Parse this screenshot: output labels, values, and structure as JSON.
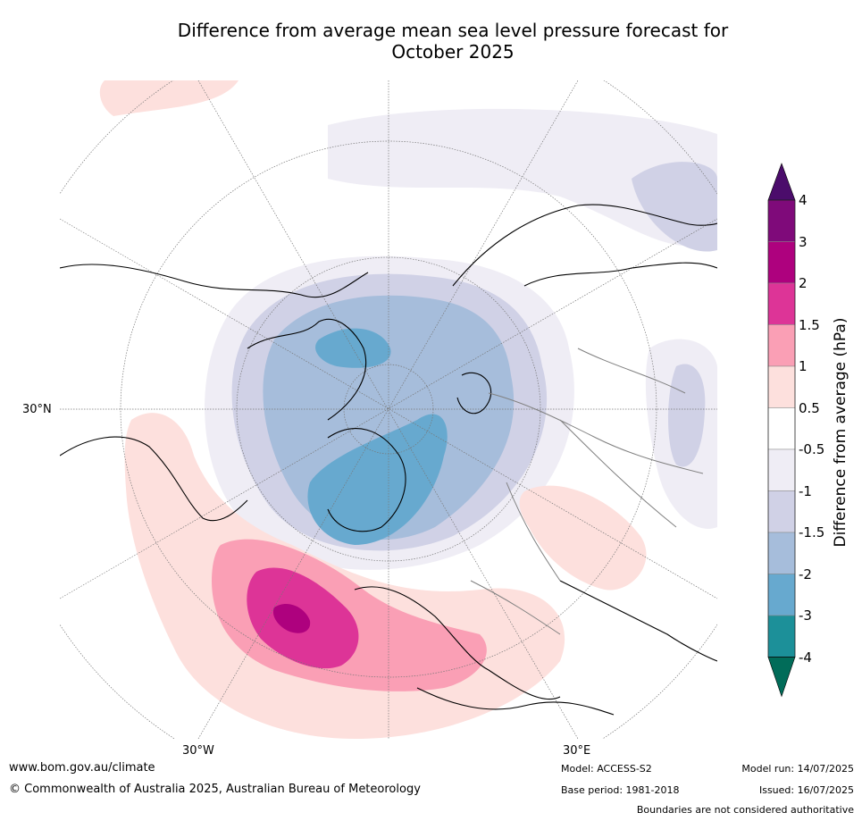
{
  "title_line1": "Difference from average mean sea level pressure forecast for",
  "title_line2": "October 2025",
  "map_labels": {
    "lat_30n": "30°N",
    "lon_30w": "30°W",
    "lon_30e": "30°E"
  },
  "colorbar": {
    "title": "Difference from average (hPa)",
    "levels": [
      {
        "label": "4",
        "color": "#4b0c6b"
      },
      {
        "label": "3",
        "color": "#7f0a7a"
      },
      {
        "label": "2",
        "color": "#ae017e"
      },
      {
        "label": "1.5",
        "color": "#dd3497"
      },
      {
        "label": "1",
        "color": "#fa9fb5"
      },
      {
        "label": "0.5",
        "color": "#fde0dd"
      },
      {
        "label": "-0.5",
        "color": "#ffffff"
      },
      {
        "label": "-1",
        "color": "#efedf5"
      },
      {
        "label": "-1.5",
        "color": "#d0d1e6"
      },
      {
        "label": "-2",
        "color": "#a6bddb"
      },
      {
        "label": "-3",
        "color": "#67a9cf"
      },
      {
        "label": "-4",
        "color": "#1c9099"
      }
    ],
    "extend_low_color": "#016c59",
    "extend_high_color": "#4b0c6b"
  },
  "footer": {
    "url": "www.bom.gov.au/climate",
    "copyright": "© Commonwealth of Australia 2025, Australian Bureau of Meteorology",
    "model": "Model: ACCESS-S2",
    "base_period": "Base period: 1981-2018",
    "model_run": "Model run: 14/07/2025",
    "issued": "Issued: 16/07/2025",
    "disclaimer": "Boundaries are not considered authoritative"
  }
}
